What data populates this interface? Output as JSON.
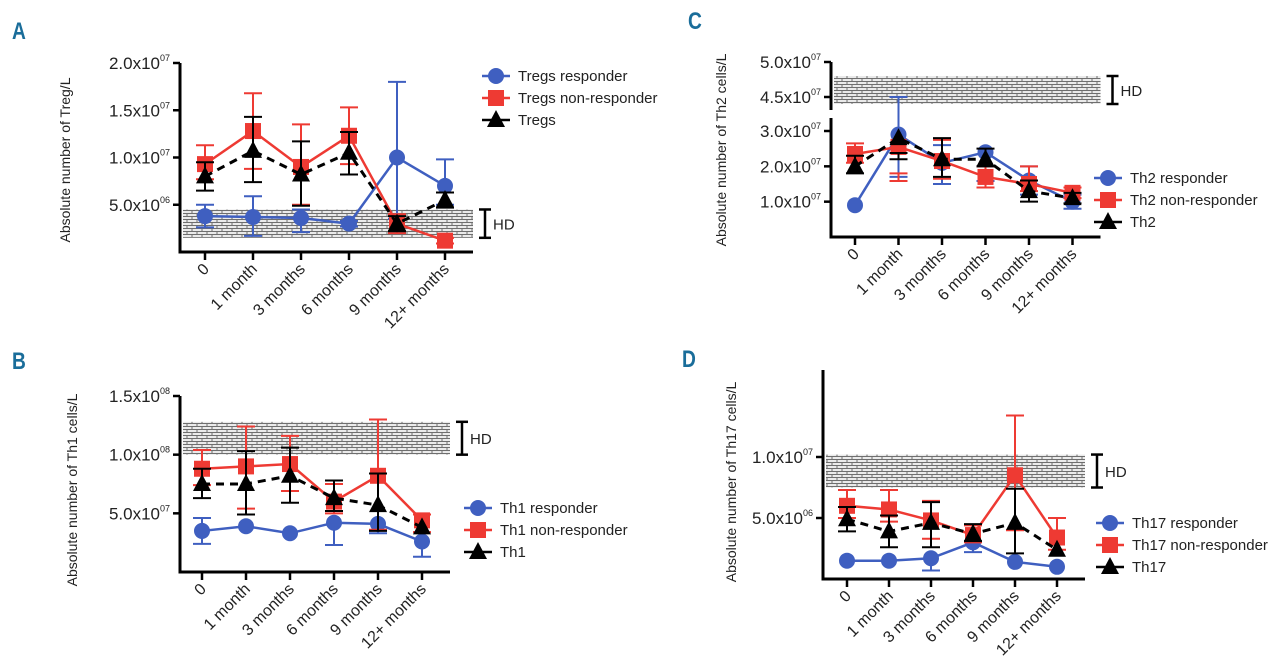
{
  "colors": {
    "responder": "#3f5fc0",
    "non_responder": "#ee3a33",
    "overall": "#000000",
    "panel_letter": "#1a6d9a",
    "hd_band": "#9a9a9a"
  },
  "chart_data": [
    {
      "id": "A",
      "type": "line",
      "panel_letter": "A",
      "title": "",
      "ylabel": "Absolute number of Treg/L",
      "xlabel": "",
      "categories": [
        "0",
        "1 month",
        "3 months",
        "6 months",
        "9 months",
        "12+ months"
      ],
      "yticks": [
        {
          "value": 5000000,
          "mantissa": "5.0x10",
          "exp": "06"
        },
        {
          "value": 10000000,
          "mantissa": "1.0x10",
          "exp": "07"
        },
        {
          "value": 15000000,
          "mantissa": "1.5x10",
          "exp": "07"
        },
        {
          "value": 20000000,
          "mantissa": "2.0x10",
          "exp": "07"
        }
      ],
      "ylim": [
        0,
        20000000
      ],
      "hd_band": {
        "label": "HD",
        "low": 1500000,
        "high": 4500000
      },
      "legend_position": "top-right",
      "series": [
        {
          "name": "Tregs responder",
          "key": "responder",
          "marker": "circle",
          "dashed": false,
          "values": [
            3800000,
            3700000,
            3600000,
            3000000,
            10000000,
            7000000
          ],
          "err_low": [
            1200000,
            2000000,
            1500000,
            300000,
            6500000,
            2000000
          ],
          "err_high": [
            1200000,
            2200000,
            900000,
            300000,
            8000000,
            2800000
          ]
        },
        {
          "name": "Tregs non-responder",
          "key": "non_responder",
          "marker": "square",
          "dashed": false,
          "values": [
            9300000,
            12800000,
            9000000,
            12300000,
            3000000,
            1200000
          ],
          "err_low": [
            1600000,
            4000000,
            4000000,
            3000000,
            1000000,
            300000
          ],
          "err_high": [
            2000000,
            4000000,
            4500000,
            3000000,
            1000000,
            300000
          ]
        },
        {
          "name": "Tregs",
          "key": "overall",
          "marker": "triangle",
          "dashed": true,
          "values": [
            8000000,
            10700000,
            8200000,
            10500000,
            3000000,
            5500000
          ],
          "err_low": [
            1500000,
            3300000,
            3300000,
            2300000,
            800000,
            800000
          ],
          "err_high": [
            1500000,
            3600000,
            3500000,
            2200000,
            800000,
            800000
          ]
        }
      ]
    },
    {
      "id": "C",
      "type": "line",
      "panel_letter": "C",
      "title": "",
      "ylabel": "Absolute number of Th2 cells/L",
      "xlabel": "",
      "categories": [
        "0",
        "1 month",
        "3 months",
        "6 months",
        "9 months",
        "12+ months"
      ],
      "axis_break": {
        "lower_segment": [
          0,
          30000000
        ],
        "upper_segment": [
          45000000,
          50000000
        ]
      },
      "yticks": [
        {
          "value": 10000000,
          "mantissa": "1.0x10",
          "exp": "07"
        },
        {
          "value": 20000000,
          "mantissa": "2.0x10",
          "exp": "07"
        },
        {
          "value": 30000000,
          "mantissa": "3.0x10",
          "exp": "07"
        },
        {
          "value": 45000000,
          "mantissa": "4.5x10",
          "exp": "07"
        },
        {
          "value": 50000000,
          "mantissa": "5.0x10",
          "exp": "07"
        }
      ],
      "ylim": [
        0,
        50000000
      ],
      "hd_band": {
        "label": "HD",
        "low": 44000000,
        "high": 48000000
      },
      "legend_position": "right",
      "series": [
        {
          "name": "Th2 responder",
          "key": "responder",
          "marker": "circle",
          "dashed": false,
          "values": [
            9000000,
            29000000,
            21000000,
            24000000,
            16000000,
            10000000
          ],
          "err_low": [
            0,
            12000000,
            6000000,
            4000000,
            4000000,
            2000000
          ],
          "err_high": [
            0,
            16000000,
            5000000,
            9000000,
            4000000,
            2000000
          ]
        },
        {
          "name": "Th2 non-responder",
          "key": "non_responder",
          "marker": "square",
          "dashed": false,
          "values": [
            23500000,
            25500000,
            21500000,
            17000000,
            15000000,
            12500000
          ],
          "err_low": [
            2500000,
            7500000,
            5000000,
            3000000,
            2000000,
            1500000
          ],
          "err_high": [
            3000000,
            7500000,
            6000000,
            3000000,
            5000000,
            1500000
          ]
        },
        {
          "name": "Th2",
          "key": "overall",
          "marker": "triangle",
          "dashed": true,
          "values": [
            20000000,
            28000000,
            22000000,
            22000000,
            13000000,
            11000000
          ],
          "err_low": [
            2000000,
            6000000,
            5000000,
            2000000,
            3000000,
            1500000
          ],
          "err_high": [
            3000000,
            9000000,
            6000000,
            3000000,
            3000000,
            1500000
          ]
        }
      ]
    },
    {
      "id": "B",
      "type": "line",
      "panel_letter": "B",
      "title": "",
      "ylabel": "Absolute number of Th1 cells/L",
      "xlabel": "",
      "categories": [
        "0",
        "1 month",
        "3 months",
        "6 months",
        "9 months",
        "12+ months"
      ],
      "yticks": [
        {
          "value": 50000000,
          "mantissa": "5.0x10",
          "exp": "07"
        },
        {
          "value": 100000000,
          "mantissa": "1.0x10",
          "exp": "08"
        },
        {
          "value": 150000000,
          "mantissa": "1.5x10",
          "exp": "08"
        }
      ],
      "ylim": [
        0,
        150000000
      ],
      "hd_band": {
        "label": "HD",
        "low": 100000000,
        "high": 128000000
      },
      "legend_position": "right",
      "series": [
        {
          "name": "Th1 responder",
          "key": "responder",
          "marker": "circle",
          "dashed": false,
          "values": [
            35000000,
            39000000,
            33000000,
            42000000,
            41000000,
            26000000
          ],
          "err_low": [
            11000000,
            0,
            0,
            19000000,
            8000000,
            13000000
          ],
          "err_high": [
            11000000,
            0,
            0,
            0,
            0,
            0
          ]
        },
        {
          "name": "Th1 non-responder",
          "key": "non_responder",
          "marker": "square",
          "dashed": false,
          "values": [
            88000000,
            90000000,
            92000000,
            60000000,
            82000000,
            44000000
          ],
          "err_low": [
            14000000,
            36000000,
            23000000,
            10000000,
            46000000,
            10000000
          ],
          "err_high": [
            16000000,
            34000000,
            24000000,
            15000000,
            48000000,
            5000000
          ]
        },
        {
          "name": "Th1",
          "key": "overall",
          "marker": "triangle",
          "dashed": true,
          "values": [
            75000000,
            75000000,
            82000000,
            63000000,
            57000000,
            38000000
          ],
          "err_low": [
            12000000,
            26000000,
            23000000,
            11000000,
            22000000,
            0
          ],
          "err_high": [
            13000000,
            28000000,
            24000000,
            15000000,
            27000000,
            0
          ]
        }
      ]
    },
    {
      "id": "D",
      "type": "line",
      "panel_letter": "D",
      "title": "",
      "ylabel": "Absolute number of Th17 cells/L",
      "xlabel": "",
      "categories": [
        "0",
        "1 month",
        "3 months",
        "6 months",
        "9 months",
        "12+ months"
      ],
      "yticks": [
        {
          "value": 5000000,
          "mantissa": "5.0x10",
          "exp": "06"
        },
        {
          "value": 10000000,
          "mantissa": "1.0x10",
          "exp": "07"
        }
      ],
      "ylim": [
        0,
        14000000
      ],
      "hd_band": {
        "label": "HD",
        "low": 7500000,
        "high": 10200000
      },
      "legend_position": "right",
      "series": [
        {
          "name": "Th17 responder",
          "key": "responder",
          "marker": "circle",
          "dashed": false,
          "values": [
            1500000,
            1500000,
            1700000,
            3000000,
            1400000,
            1000000
          ],
          "err_low": [
            0,
            0,
            1000000,
            800000,
            0,
            0
          ],
          "err_high": [
            0,
            0,
            0,
            0,
            0,
            0
          ]
        },
        {
          "name": "Th17 non-responder",
          "key": "non_responder",
          "marker": "square",
          "dashed": false,
          "values": [
            6000000,
            5700000,
            4800000,
            3600000,
            8500000,
            3400000
          ],
          "err_low": [
            1000000,
            1000000,
            1500000,
            600000,
            4500000,
            1000000
          ],
          "err_high": [
            1300000,
            1600000,
            1600000,
            800000,
            4900000,
            1600000
          ]
        },
        {
          "name": "Th17",
          "key": "overall",
          "marker": "triangle",
          "dashed": true,
          "values": [
            4900000,
            3900000,
            4600000,
            3700000,
            4600000,
            2400000
          ],
          "err_low": [
            1000000,
            1300000,
            2000000,
            600000,
            2500000,
            0
          ],
          "err_high": [
            1000000,
            1300000,
            1700000,
            800000,
            2800000,
            0
          ]
        }
      ]
    }
  ]
}
